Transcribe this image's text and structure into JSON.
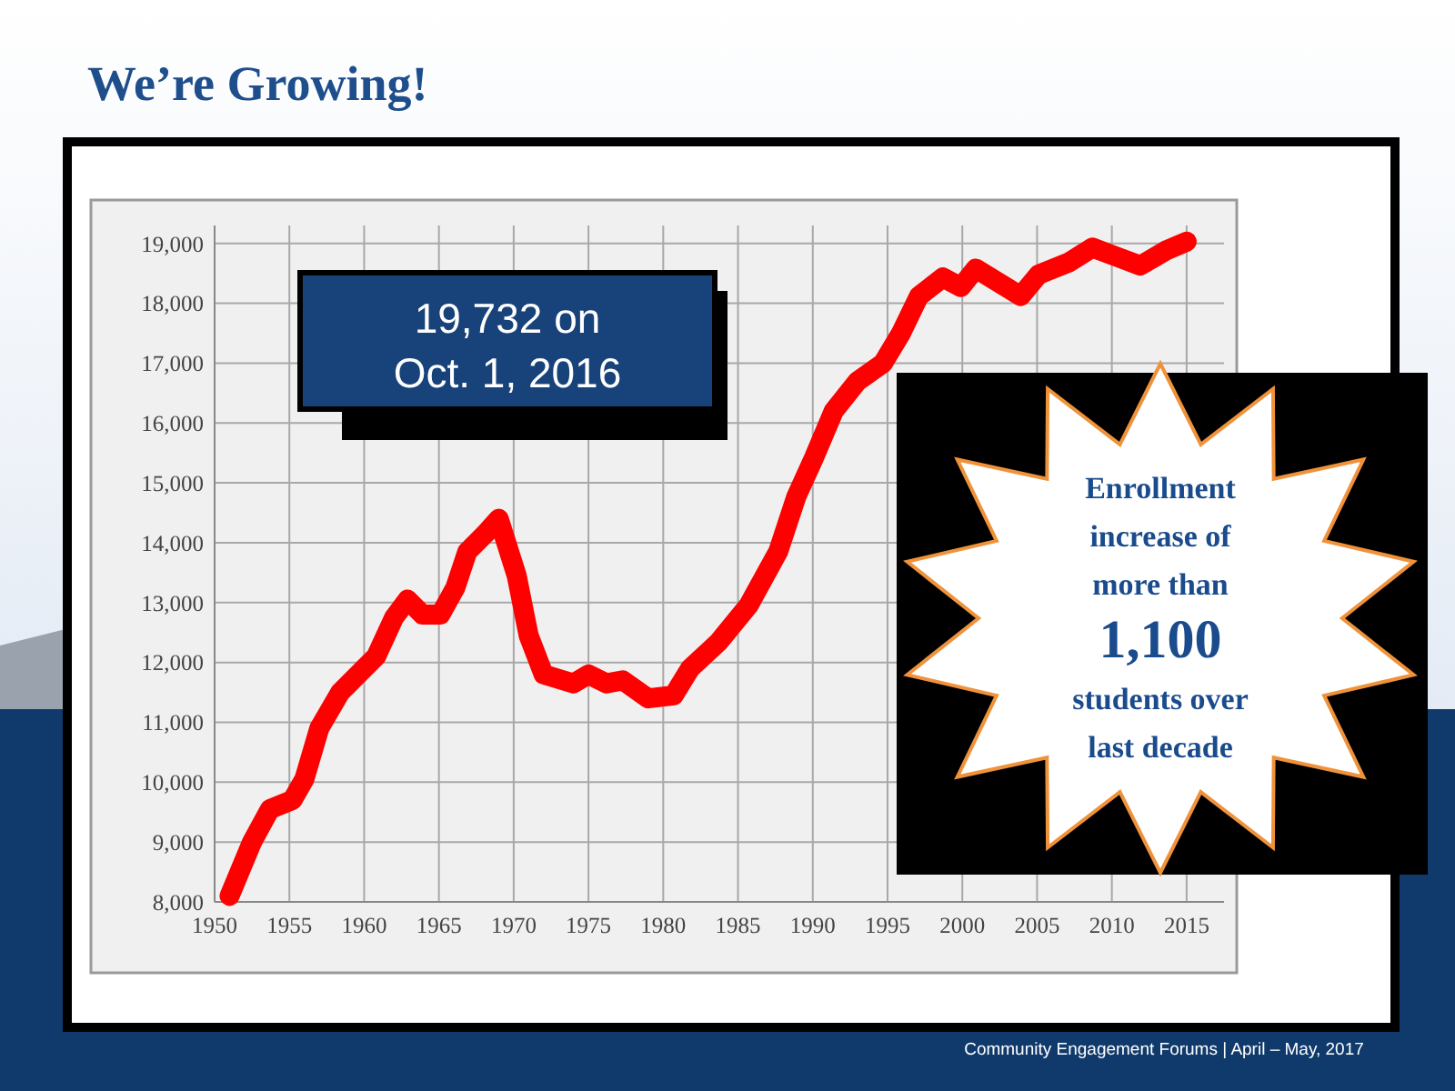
{
  "chart_data": {
    "type": "line",
    "title": "We’re Growing!",
    "x": [
      1951,
      1952.5,
      1953.7,
      1955.2,
      1956,
      1957,
      1958.4,
      1959.6,
      1960.8,
      1962,
      1962.9,
      1963.9,
      1965.1,
      1966.1,
      1966.9,
      1968.1,
      1969,
      1970.2,
      1971,
      1972,
      1974,
      1975,
      1976.2,
      1977.3,
      1979,
      1980.7,
      1981.8,
      1983.7,
      1985.7,
      1987.7,
      1988.9,
      1990.1,
      1991.4,
      1993,
      1994.7,
      1995.9,
      1997.1,
      1998.7,
      1999.9,
      2000.9,
      2003.9,
      2005.1,
      2007.1,
      2008.7,
      2010.3,
      2011.9,
      2013.6,
      2015
    ],
    "series": [
      {
        "color": "#ff0000",
        "values": [
          8100,
          9000,
          9550,
          9700,
          10050,
          10900,
          11500,
          11800,
          12100,
          12750,
          13050,
          12800,
          12800,
          13250,
          13850,
          14150,
          14400,
          13450,
          12450,
          11800,
          11650,
          11800,
          11650,
          11700,
          11400,
          11450,
          11900,
          12340,
          12950,
          13860,
          14770,
          15430,
          16200,
          16700,
          17000,
          17500,
          18120,
          18430,
          18270,
          18580,
          18120,
          18480,
          18680,
          18930,
          18780,
          18630,
          18880,
          19030
        ]
      }
    ],
    "xlim": [
      1950,
      2017.5
    ],
    "ylim": [
      8000,
      19300
    ],
    "xticks": [
      1950,
      1955,
      1960,
      1965,
      1970,
      1975,
      1980,
      1985,
      1990,
      1995,
      2000,
      2005,
      2010,
      2015
    ],
    "yticks": [
      {
        "value": 8000,
        "label": "8,000"
      },
      {
        "value": 9000,
        "label": "9,000"
      },
      {
        "value": 10000,
        "label": "10,000"
      },
      {
        "value": 11000,
        "label": "11,000"
      },
      {
        "value": 12000,
        "label": "12,000"
      },
      {
        "value": 13000,
        "label": "13,000"
      },
      {
        "value": 14000,
        "label": "14,000"
      },
      {
        "value": 15000,
        "label": "15,000"
      },
      {
        "value": 16000,
        "label": "16,000"
      },
      {
        "value": 17000,
        "label": "17,000"
      },
      {
        "value": 18000,
        "label": "18,000"
      },
      {
        "value": 19000,
        "label": "19,000"
      }
    ],
    "grid": true,
    "line_style": "solid",
    "annotations": [
      "19,732 on\nOct. 1, 2016",
      "Enrollment\nincrease of\nmore than\n1,100\nstudents over\nlast decade",
      "Community Engagement Forums | April – May, 2017"
    ]
  }
}
